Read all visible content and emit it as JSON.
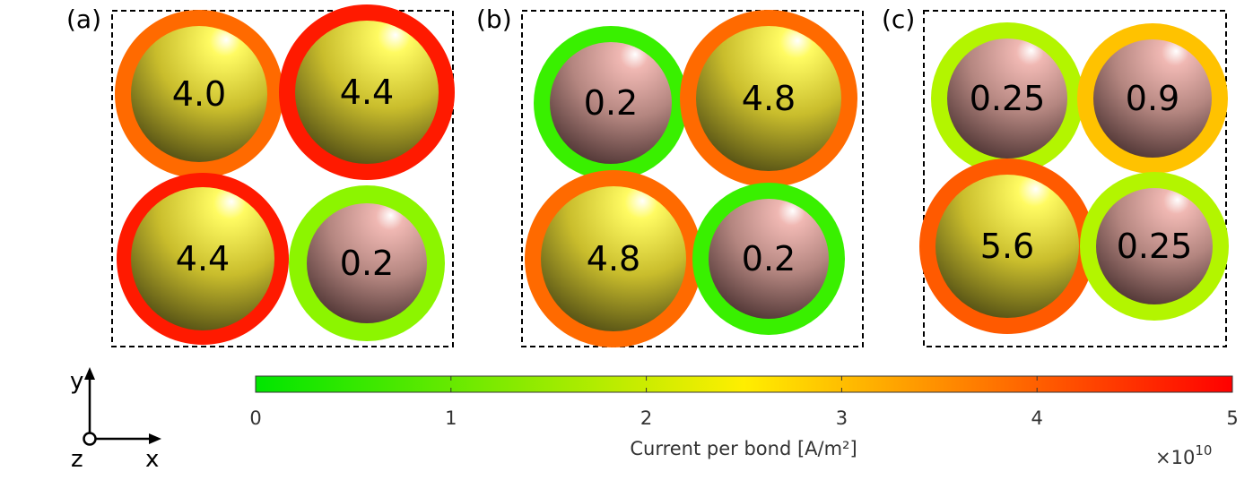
{
  "panels": [
    {
      "label": "(a)",
      "atoms": [
        {
          "value": "4.0",
          "element": "gold",
          "ring_color": "#ff6a00"
        },
        {
          "value": "4.4",
          "element": "gold",
          "ring_color": "#ff1a00"
        },
        {
          "value": "4.4",
          "element": "gold",
          "ring_color": "#ff1a00"
        },
        {
          "value": "0.2",
          "element": "pink",
          "ring_color": "#8cf500"
        }
      ]
    },
    {
      "label": "(b)",
      "atoms": [
        {
          "value": "0.2",
          "element": "pink",
          "ring_color": "#39f000"
        },
        {
          "value": "4.8",
          "element": "gold",
          "ring_color": "#ff6a00"
        },
        {
          "value": "4.8",
          "element": "gold",
          "ring_color": "#ff6a00"
        },
        {
          "value": "0.2",
          "element": "pink",
          "ring_color": "#39f000"
        }
      ]
    },
    {
      "label": "(c)",
      "atoms": [
        {
          "value": "0.25",
          "element": "pink",
          "ring_color": "#b3f500"
        },
        {
          "value": "0.9",
          "element": "pink",
          "ring_color": "#ffc200"
        },
        {
          "value": "5.6",
          "element": "gold",
          "ring_color": "#ff5a00"
        },
        {
          "value": "0.25",
          "element": "pink",
          "ring_color": "#b3f500"
        }
      ]
    }
  ],
  "colorbar": {
    "label": "Current per bond [A/m²]",
    "ticks": [
      "0",
      "1",
      "2",
      "3",
      "4",
      "5"
    ],
    "multiplier_base": "×10",
    "multiplier_exp": "10",
    "colors": [
      "#00e600",
      "#ffee00",
      "#ff0000"
    ]
  },
  "axes": {
    "y": "y",
    "x": "x",
    "z": "z"
  }
}
